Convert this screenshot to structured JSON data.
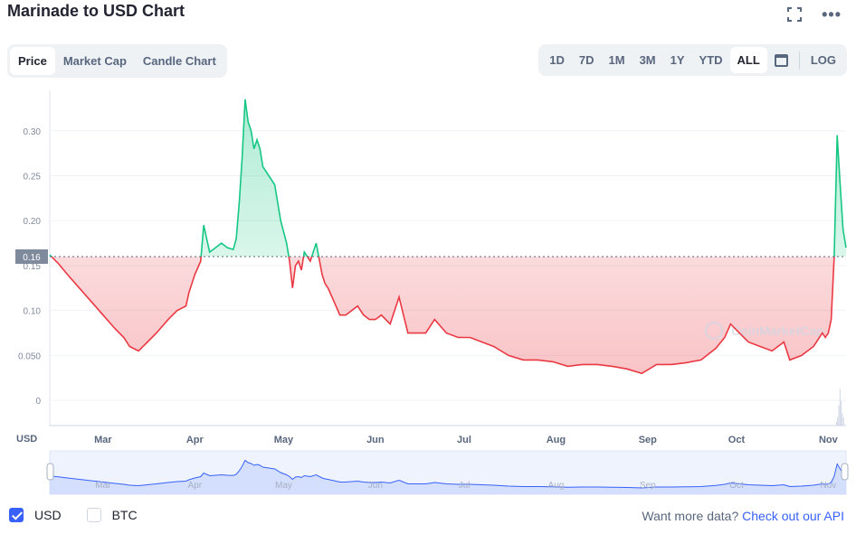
{
  "title": "Marinade to USD Chart",
  "icons": {
    "expand": "expand-icon",
    "more": "more-icon",
    "calendar": "calendar-icon",
    "check": "check-icon"
  },
  "tabs": [
    {
      "label": "Price",
      "active": true
    },
    {
      "label": "Market Cap",
      "active": false
    },
    {
      "label": "Candle Chart",
      "active": false
    }
  ],
  "ranges": [
    {
      "label": "1D",
      "active": false
    },
    {
      "label": "7D",
      "active": false
    },
    {
      "label": "1M",
      "active": false
    },
    {
      "label": "3M",
      "active": false
    },
    {
      "label": "1Y",
      "active": false
    },
    {
      "label": "YTD",
      "active": false
    },
    {
      "label": "ALL",
      "active": true
    }
  ],
  "log_label": "LOG",
  "legend": [
    {
      "label": "USD",
      "checked": true
    },
    {
      "label": "BTC",
      "checked": false
    }
  ],
  "api": {
    "text": "Want more data?",
    "link": "Check out our API"
  },
  "watermark": "CoinMarketCap",
  "colors": {
    "up": "#16c784",
    "down": "#ea3943",
    "accent": "#3861fb",
    "navigator_line": "#3861fb"
  },
  "chart_data": {
    "type": "line",
    "ylabel": "USD",
    "y_ticks": [
      "0",
      "0.050",
      "0.10",
      "0.15",
      "0.20",
      "0.25",
      "0.30"
    ],
    "y_tick_values": [
      0,
      0.05,
      0.1,
      0.15,
      0.2,
      0.25,
      0.3
    ],
    "ylim": [
      -0.028,
      0.345
    ],
    "x_ticks": [
      "Mar",
      "Apr",
      "May",
      "Jun",
      "Jul",
      "Aug",
      "Sep",
      "Oct",
      "Nov"
    ],
    "x_tick_days": [
      18,
      49,
      79,
      110,
      140,
      171,
      202,
      232,
      263
    ],
    "xlim": [
      0,
      269
    ],
    "reference_price": 0.16,
    "reference_label": "0.16",
    "x": [
      0,
      3,
      6,
      10,
      14,
      18,
      22,
      25,
      27,
      30,
      33,
      36,
      40,
      43,
      46,
      47,
      49,
      51,
      52,
      54,
      56,
      58,
      60,
      62,
      63,
      64,
      65,
      66,
      67,
      68,
      69,
      70,
      71,
      72,
      74,
      76,
      78,
      80,
      81,
      82,
      83,
      84,
      85,
      86,
      88,
      90,
      92,
      93,
      94,
      96,
      98,
      100,
      104,
      106,
      108,
      110,
      112,
      115,
      118,
      121,
      124,
      127,
      130,
      134,
      138,
      142,
      146,
      150,
      155,
      160,
      165,
      170,
      175,
      180,
      185,
      190,
      195,
      200,
      205,
      210,
      215,
      220,
      225,
      228,
      230,
      233,
      236,
      240,
      244,
      248,
      250,
      254,
      258,
      261,
      262,
      263,
      264,
      265,
      266,
      267,
      268,
      269
    ],
    "y": [
      0.162,
      0.152,
      0.14,
      0.125,
      0.11,
      0.095,
      0.08,
      0.07,
      0.06,
      0.055,
      0.065,
      0.075,
      0.09,
      0.1,
      0.105,
      0.12,
      0.14,
      0.155,
      0.195,
      0.165,
      0.17,
      0.175,
      0.17,
      0.168,
      0.18,
      0.22,
      0.27,
      0.335,
      0.31,
      0.3,
      0.28,
      0.29,
      0.28,
      0.26,
      0.25,
      0.24,
      0.2,
      0.175,
      0.155,
      0.125,
      0.15,
      0.155,
      0.145,
      0.165,
      0.155,
      0.175,
      0.14,
      0.13,
      0.125,
      0.11,
      0.095,
      0.095,
      0.105,
      0.095,
      0.09,
      0.09,
      0.095,
      0.085,
      0.115,
      0.075,
      0.075,
      0.075,
      0.09,
      0.075,
      0.07,
      0.07,
      0.065,
      0.06,
      0.05,
      0.045,
      0.045,
      0.043,
      0.038,
      0.04,
      0.04,
      0.038,
      0.035,
      0.03,
      0.04,
      0.04,
      0.042,
      0.045,
      0.058,
      0.07,
      0.085,
      0.075,
      0.065,
      0.06,
      0.055,
      0.065,
      0.045,
      0.05,
      0.06,
      0.075,
      0.07,
      0.075,
      0.09,
      0.16,
      0.295,
      0.24,
      0.19,
      0.17
    ],
    "volume_bars": [
      0,
      0,
      0,
      0,
      0,
      0.1,
      0.2,
      0.5,
      0.9,
      0.6,
      0.3,
      0.2
    ],
    "navigator_x_ticks": [
      "Mar",
      "Apr",
      "May",
      "Jun",
      "Jul",
      "Aug",
      "Sep",
      "Oct",
      "Nov"
    ]
  }
}
